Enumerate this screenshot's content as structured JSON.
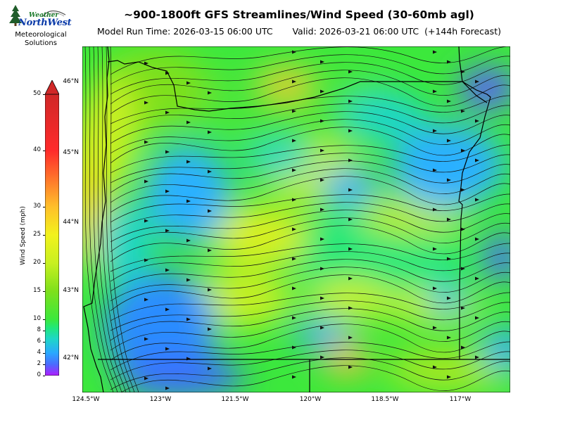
{
  "header": {
    "title": "~900-1800ft GFS Streamlines/Wind Speed (30-60mb agl)",
    "subtitle": "Model Run Time: 2026-03-15 06:00 UTC       Valid: 2026-03-21 06:00 UTC  (+144h Forecast)"
  },
  "logo": {
    "line1": "Weather",
    "line2": "NorthWest",
    "caption1": "Meteorological",
    "caption2": "Solutions",
    "tree_icon": "pine-tree-icon"
  },
  "colorbar": {
    "label": "Wind Speed (mph)",
    "ticks": [
      "0",
      "2",
      "4",
      "6",
      "8",
      "10",
      "15",
      "20",
      "25",
      "30",
      "40",
      "50"
    ],
    "colors": [
      "#b01cff",
      "#4a6bff",
      "#2aa8ff",
      "#1ed6c8",
      "#20e87a",
      "#3ce83c",
      "#7ee01c",
      "#c8f020",
      "#f2f21c",
      "#ffbf2a",
      "#ff6a2a",
      "#ff2a2a",
      "#d02828"
    ]
  },
  "map": {
    "lat_labels": [
      "46°N",
      "45°N",
      "44°N",
      "43°N",
      "42°N"
    ],
    "lon_labels": [
      "124.5°W",
      "123°W",
      "121.5°W",
      "120°W",
      "118.5°W",
      "117°W"
    ]
  }
}
